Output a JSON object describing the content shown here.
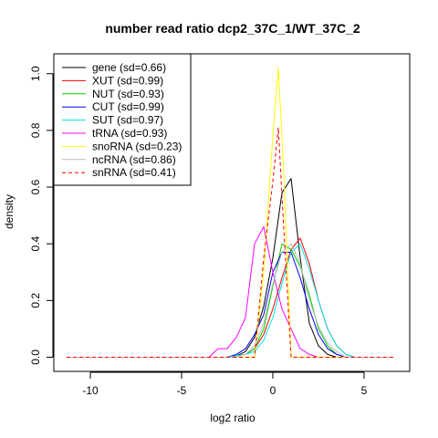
{
  "chart_data": {
    "type": "line",
    "title": "number read ratio dcp2_37C_1/WT_37C_2",
    "xlabel": "log2 ratio",
    "ylabel": "density",
    "xlim": [
      -12,
      7.5
    ],
    "ylim": [
      -0.05,
      1.07
    ],
    "xticks": [
      -10,
      -5,
      0,
      5
    ],
    "yticks": [
      0.0,
      0.2,
      0.4,
      0.6,
      0.8,
      1.0
    ],
    "legend_position": "top-left",
    "series": [
      {
        "name": "gene (sd=0.66)",
        "color": "#000000",
        "dash": "solid",
        "x": [
          -11.3,
          -2.5,
          -2.0,
          -1.5,
          -1.0,
          -0.5,
          0.0,
          0.5,
          1.0,
          1.5,
          2.0,
          2.5,
          3.0,
          3.5,
          6.6
        ],
        "y": [
          0,
          0,
          0.005,
          0.02,
          0.07,
          0.18,
          0.35,
          0.58,
          0.63,
          0.35,
          0.12,
          0.04,
          0.01,
          0.0,
          0
        ]
      },
      {
        "name": "XUT (sd=0.99)",
        "color": "#ff0000",
        "dash": "solid",
        "x": [
          -11.3,
          -2.5,
          -2.0,
          -1.5,
          -1.0,
          -0.5,
          0.0,
          0.5,
          1.0,
          1.5,
          2.0,
          2.5,
          3.0,
          3.5,
          4.0,
          4.5,
          6.6
        ],
        "y": [
          0,
          0,
          0.005,
          0.01,
          0.03,
          0.08,
          0.17,
          0.28,
          0.38,
          0.42,
          0.33,
          0.2,
          0.1,
          0.04,
          0.01,
          0,
          0
        ]
      },
      {
        "name": "NUT (sd=0.93)",
        "color": "#00cd00",
        "dash": "solid",
        "x": [
          -11.3,
          -2.5,
          -2.0,
          -1.5,
          -1.0,
          -0.5,
          0.0,
          0.5,
          1.0,
          1.5,
          2.0,
          2.5,
          3.0,
          3.5,
          4.0,
          6.6
        ],
        "y": [
          0,
          0,
          0.005,
          0.01,
          0.03,
          0.1,
          0.25,
          0.4,
          0.38,
          0.32,
          0.22,
          0.1,
          0.04,
          0.01,
          0,
          0
        ]
      },
      {
        "name": "CUT (sd=0.99)",
        "color": "#0000ff",
        "dash": "solid",
        "x": [
          -11.3,
          -2.5,
          -2.0,
          -1.5,
          -1.0,
          -0.5,
          0.0,
          0.5,
          1.0,
          1.5,
          2.0,
          2.5,
          3.0,
          3.5,
          4.0,
          6.6
        ],
        "y": [
          0,
          0,
          0.01,
          0.03,
          0.08,
          0.15,
          0.3,
          0.37,
          0.37,
          0.28,
          0.17,
          0.08,
          0.03,
          0.01,
          0,
          0
        ]
      },
      {
        "name": "SUT (sd=0.97)",
        "color": "#00e5e5",
        "dash": "solid",
        "x": [
          -11.3,
          -2.5,
          -2.0,
          -1.5,
          -1.0,
          -0.5,
          0.0,
          0.5,
          1.0,
          1.5,
          2.0,
          2.5,
          3.0,
          3.5,
          4.0,
          4.5,
          6.6
        ],
        "y": [
          0,
          0,
          0.005,
          0.01,
          0.02,
          0.06,
          0.14,
          0.26,
          0.37,
          0.4,
          0.31,
          0.2,
          0.1,
          0.04,
          0.01,
          0,
          0
        ]
      },
      {
        "name": "tRNA (sd=0.93)",
        "color": "#ff00ff",
        "dash": "solid",
        "x": [
          -11.3,
          -3.5,
          -3.0,
          -2.5,
          -2.0,
          -1.5,
          -1.0,
          -0.5,
          0.0,
          0.5,
          1.0,
          1.5,
          2.0,
          2.5,
          6.6
        ],
        "y": [
          0,
          0,
          0.03,
          0.03,
          0.07,
          0.14,
          0.4,
          0.46,
          0.3,
          0.17,
          0.1,
          0.03,
          0.01,
          0,
          0
        ]
      },
      {
        "name": "snoRNA (sd=0.23)",
        "color": "#ffff00",
        "dash": "solid",
        "x": [
          -11.3,
          -1.0,
          -0.5,
          0.0,
          0.3,
          0.6,
          1.0,
          1.5,
          6.6
        ],
        "y": [
          0,
          0,
          0.3,
          0.78,
          1.02,
          0.65,
          0.0,
          0.0,
          0
        ]
      },
      {
        "name": "ncRNA (sd=0.86)",
        "color": "#bebebe",
        "dash": "solid",
        "x": [
          -11.3,
          -2.0,
          -1.5,
          -1.0,
          -0.5,
          0.0,
          0.5,
          1.0,
          1.5,
          2.0,
          2.5,
          3.0,
          3.5,
          4.0,
          6.6
        ],
        "y": [
          0,
          0,
          0.01,
          0.04,
          0.12,
          0.26,
          0.37,
          0.4,
          0.33,
          0.2,
          0.11,
          0.05,
          0.02,
          0,
          0
        ]
      },
      {
        "name": "snRNA (sd=0.41)",
        "color": "#ff0000",
        "dash": "dashed",
        "x": [
          -11.3,
          -1.0,
          -0.5,
          0.0,
          0.3,
          0.6,
          1.0,
          6.6
        ],
        "y": [
          0,
          0,
          0.35,
          0.62,
          0.81,
          0.45,
          0.0,
          0
        ]
      }
    ]
  }
}
